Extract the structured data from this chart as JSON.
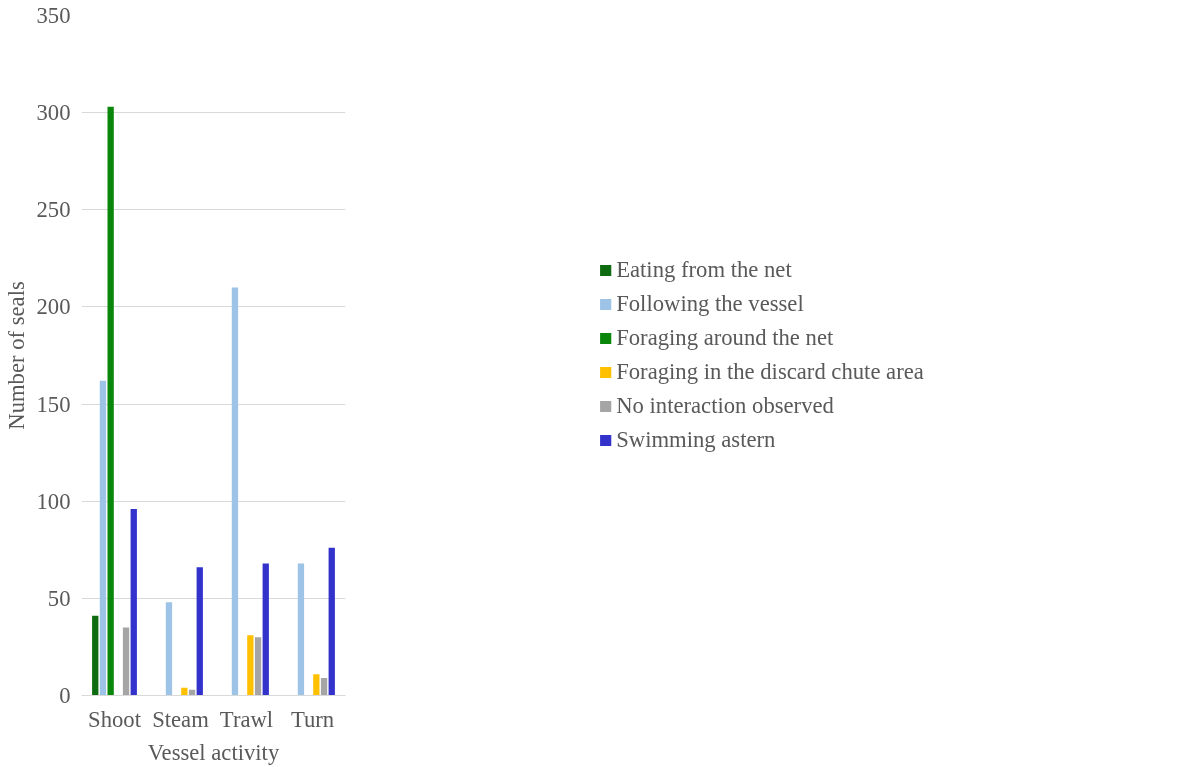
{
  "chart_data": {
    "type": "bar",
    "xlabel": "Vessel activity",
    "ylabel": "Number of seals",
    "categories": [
      "Shoot",
      "Steam",
      "Trawl",
      "Turn"
    ],
    "series": [
      {
        "name": "Eating from the net",
        "color": "#0f6b0f",
        "values": [
          41,
          0,
          0,
          0
        ]
      },
      {
        "name": "Following the vessel",
        "color": "#9dc3e6",
        "values": [
          162,
          48,
          210,
          68
        ]
      },
      {
        "name": "Foraging around the net",
        "color": "#0a870a",
        "values": [
          303,
          0,
          0,
          0
        ]
      },
      {
        "name": "Foraging in the discard chute area",
        "color": "#ffc000",
        "values": [
          0,
          4,
          31,
          11
        ]
      },
      {
        "name": "No interaction observed",
        "color": "#a5a5a5",
        "values": [
          35,
          3,
          30,
          9
        ]
      },
      {
        "name": "Swimming astern",
        "color": "#3333cc",
        "values": [
          96,
          66,
          68,
          76
        ]
      }
    ],
    "ylim": [
      0,
      350
    ],
    "yticks": [
      0,
      50,
      100,
      150,
      200,
      250,
      300,
      350
    ],
    "grid": "y",
    "legend": "right"
  }
}
